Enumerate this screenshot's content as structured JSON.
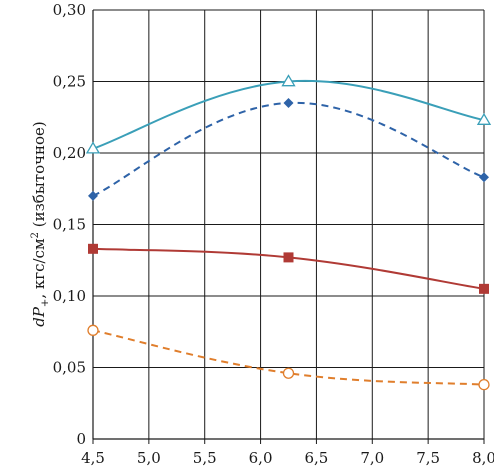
{
  "chart_data": {
    "type": "line",
    "ylabel": {
      "main": "dP",
      "subscript": "+",
      "unit": ", кгс/см",
      "superscript": "2",
      "note": " (избыточное)"
    },
    "xlim": [
      4.5,
      8.0
    ],
    "ylim": [
      0,
      0.3
    ],
    "x_ticks": [
      "4,5",
      "5,0",
      "5,5",
      "6,0",
      "6,5",
      "7,0",
      "7,5",
      "8,0"
    ],
    "x_tick_values": [
      4.5,
      5.0,
      5.5,
      6.0,
      6.5,
      7.0,
      7.5,
      8.0
    ],
    "y_ticks": [
      "0",
      "0,05",
      "0,10",
      "0,15",
      "0,20",
      "0,25",
      "0,30"
    ],
    "y_tick_values": [
      0,
      0.05,
      0.1,
      0.15,
      0.2,
      0.25,
      0.3
    ],
    "grid": true,
    "legend": "none",
    "series": [
      {
        "id": "teal-triangle-solid",
        "color": "#3a9fb8",
        "line_style": "solid",
        "marker": "triangle-open",
        "points": [
          [
            4.5,
            0.203
          ],
          [
            6.25,
            0.25
          ],
          [
            8.0,
            0.223
          ]
        ]
      },
      {
        "id": "blue-diamond-dashed",
        "color": "#2e63a8",
        "line_style": "dashed",
        "marker": "diamond-filled",
        "points": [
          [
            4.5,
            0.17
          ],
          [
            6.25,
            0.235
          ],
          [
            8.0,
            0.183
          ]
        ]
      },
      {
        "id": "red-square-solid",
        "color": "#b03a35",
        "line_style": "solid",
        "marker": "square-filled",
        "points": [
          [
            4.5,
            0.133
          ],
          [
            6.25,
            0.127
          ],
          [
            8.0,
            0.105
          ]
        ]
      },
      {
        "id": "orange-circle-dashed",
        "color": "#e07e2c",
        "line_style": "dashed",
        "marker": "circle-open",
        "points": [
          [
            4.5,
            0.076
          ],
          [
            6.25,
            0.046
          ],
          [
            8.0,
            0.038
          ]
        ]
      }
    ]
  }
}
